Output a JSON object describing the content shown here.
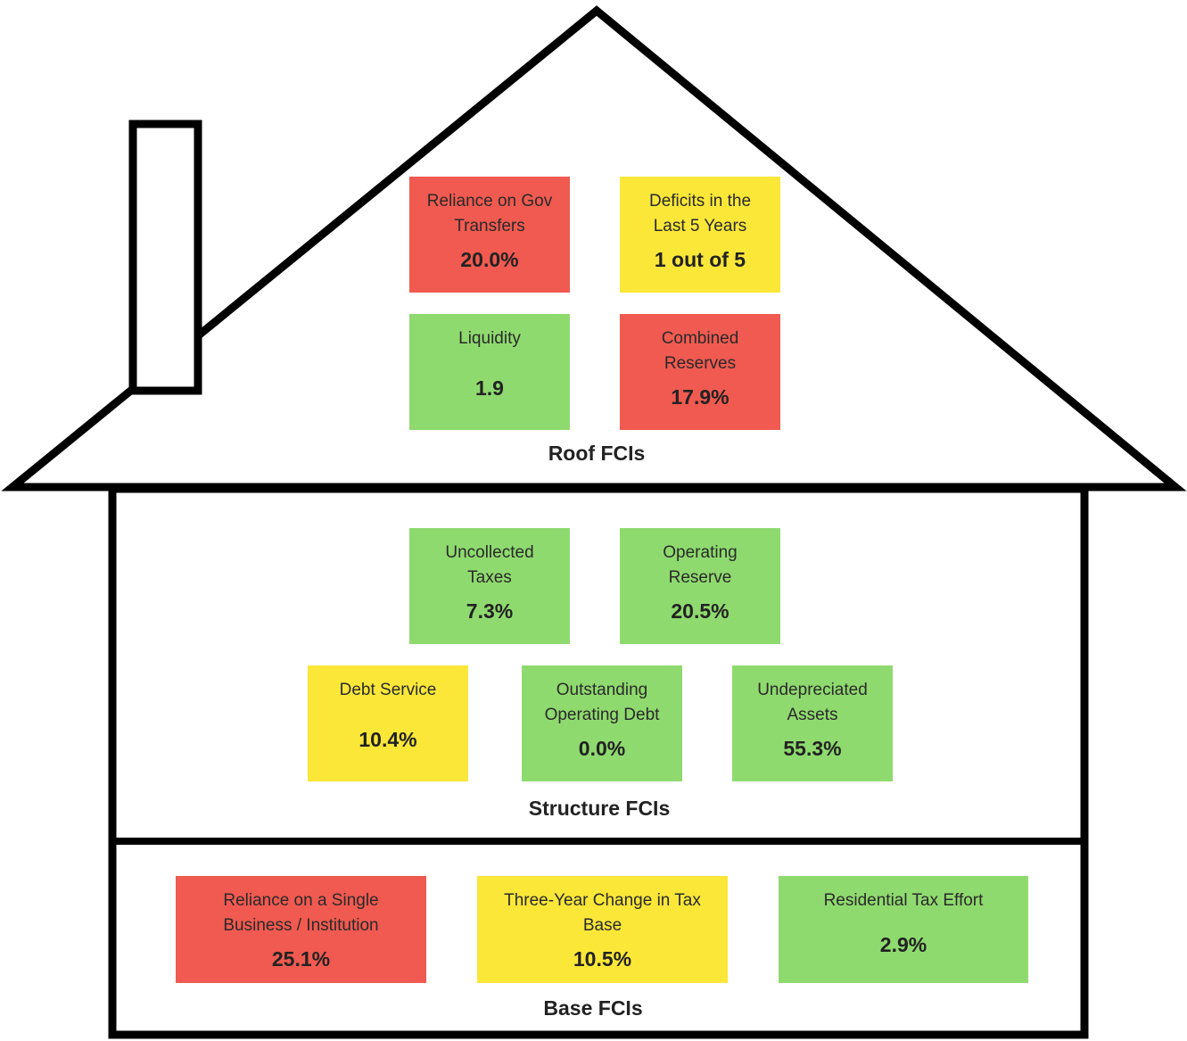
{
  "roof": {
    "title": "Roof FCIs",
    "cards": [
      {
        "label_lines": [
          "Reliance on Gov",
          "Transfers"
        ],
        "value": "20.0%",
        "status": "red"
      },
      {
        "label_lines": [
          "Deficits in the",
          "Last 5 Years"
        ],
        "value": "1 out of 5",
        "status": "yellow"
      },
      {
        "label_lines": [
          "Liquidity"
        ],
        "value": "1.9",
        "status": "green"
      },
      {
        "label_lines": [
          "Combined",
          "Reserves"
        ],
        "value": "17.9%",
        "status": "red"
      }
    ]
  },
  "structure": {
    "title": "Structure FCIs",
    "cards": [
      {
        "label_lines": [
          "Uncollected",
          "Taxes"
        ],
        "value": "7.3%",
        "status": "green"
      },
      {
        "label_lines": [
          "Operating",
          "Reserve"
        ],
        "value": "20.5%",
        "status": "green"
      },
      {
        "label_lines": [
          "Debt Service"
        ],
        "value": "10.4%",
        "status": "yellow"
      },
      {
        "label_lines": [
          "Outstanding",
          "Operating Debt"
        ],
        "value": "0.0%",
        "status": "green"
      },
      {
        "label_lines": [
          "Undepreciated",
          "Assets"
        ],
        "value": "55.3%",
        "status": "green"
      }
    ]
  },
  "base": {
    "title": "Base FCIs",
    "cards": [
      {
        "label_lines": [
          "Reliance on a Single",
          "Business / Institution"
        ],
        "value": "25.1%",
        "status": "red"
      },
      {
        "label_lines": [
          "Three-Year Change in Tax",
          "Base"
        ],
        "value": "10.5%",
        "status": "yellow"
      },
      {
        "label_lines": [
          "Residential Tax Effort"
        ],
        "value": "2.9%",
        "status": "green"
      }
    ]
  },
  "colors": {
    "red": "#f05a50",
    "yellow": "#fae738",
    "green": "#8fda6f",
    "outline": "#000000"
  }
}
